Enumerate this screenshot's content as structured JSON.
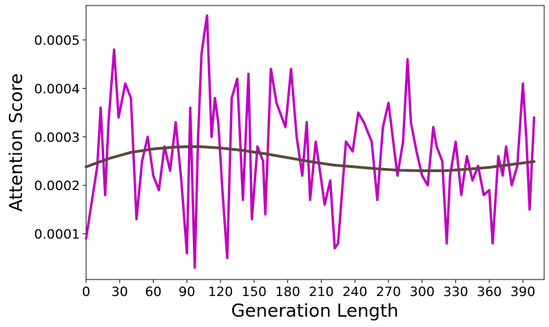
{
  "chart_data": {
    "type": "line",
    "title": "",
    "xlabel": "Generation Length",
    "ylabel": "Attention Score",
    "xlim": [
      0,
      409
    ],
    "ylim": [
      5.6e-06,
      0.000571
    ],
    "x_ticks": [
      0,
      30,
      60,
      90,
      120,
      150,
      180,
      210,
      240,
      270,
      300,
      330,
      360,
      390
    ],
    "x_tick_labels": [
      "0",
      "30",
      "60",
      "90",
      "120",
      "150",
      "180",
      "210",
      "240",
      "270",
      "300",
      "330",
      "360",
      "390"
    ],
    "y_ticks": [
      0.0001,
      0.0002,
      0.0003,
      0.0004,
      0.0005
    ],
    "y_tick_labels": [
      "0.0001",
      "0.0002",
      "0.0003",
      "0.0004",
      "0.0005"
    ],
    "grid": false,
    "legend": "none",
    "series": [
      {
        "color": "#c000c0",
        "x": [
          0,
          10,
          13,
          17,
          20,
          25,
          29,
          35,
          40,
          45,
          50,
          55,
          60,
          65,
          70,
          75,
          80,
          85,
          90,
          93,
          97,
          100,
          103,
          106,
          108,
          112,
          115,
          118,
          122,
          126,
          130,
          135,
          140,
          145,
          148,
          153,
          158,
          160,
          165,
          170,
          178,
          183,
          188,
          193,
          197,
          200,
          205,
          210,
          213,
          218,
          222,
          225,
          232,
          238,
          243,
          248,
          255,
          260,
          265,
          270,
          278,
          283,
          287,
          290,
          295,
          300,
          305,
          310,
          313,
          318,
          322,
          325,
          330,
          335,
          340,
          345,
          350,
          355,
          360,
          363,
          368,
          372,
          375,
          380,
          385,
          390,
          393,
          396,
          400
        ],
        "y": [
          9e-05,
          0.00024,
          0.00036,
          0.00018,
          0.00033,
          0.00048,
          0.00034,
          0.00041,
          0.00038,
          0.00013,
          0.00025,
          0.0003,
          0.00022,
          0.00019,
          0.00028,
          0.00023,
          0.00033,
          0.00021,
          6e-05,
          0.00036,
          3e-05,
          0.0003,
          0.00047,
          0.00052,
          0.00055,
          0.0003,
          0.00038,
          0.00033,
          0.00018,
          5e-05,
          0.00038,
          0.00042,
          0.00017,
          0.00043,
          0.00013,
          0.00028,
          0.00025,
          0.00014,
          0.00044,
          0.00037,
          0.00032,
          0.00044,
          0.0003,
          0.00022,
          0.00033,
          0.00017,
          0.00029,
          0.00021,
          0.00016,
          0.00021,
          7e-05,
          8e-05,
          0.00029,
          0.00027,
          0.00035,
          0.00033,
          0.00029,
          0.00017,
          0.00032,
          0.00037,
          0.00022,
          0.00029,
          0.00046,
          0.00033,
          0.00027,
          0.00022,
          0.0002,
          0.00032,
          0.00028,
          0.00025,
          8e-05,
          0.00022,
          0.00029,
          0.00018,
          0.00026,
          0.00021,
          0.00024,
          0.00018,
          0.00019,
          8e-05,
          0.00026,
          0.00022,
          0.00028,
          0.0002,
          0.00024,
          0.00041,
          0.0003,
          0.00015,
          0.00034
        ]
      },
      {
        "color": "#5a4a3a",
        "x": [
          0,
          20,
          40,
          60,
          80,
          100,
          120,
          140,
          160,
          180,
          200,
          220,
          240,
          260,
          280,
          300,
          320,
          340,
          360,
          380,
          400
        ],
        "y": [
          0.000238,
          0.000255,
          0.000268,
          0.000275,
          0.000279,
          0.00028,
          0.000277,
          0.000272,
          0.000265,
          0.000257,
          0.000249,
          0.000242,
          0.000238,
          0.000234,
          0.000231,
          0.00023,
          0.00023,
          0.000233,
          0.000237,
          0.000243,
          0.000249
        ]
      }
    ]
  }
}
